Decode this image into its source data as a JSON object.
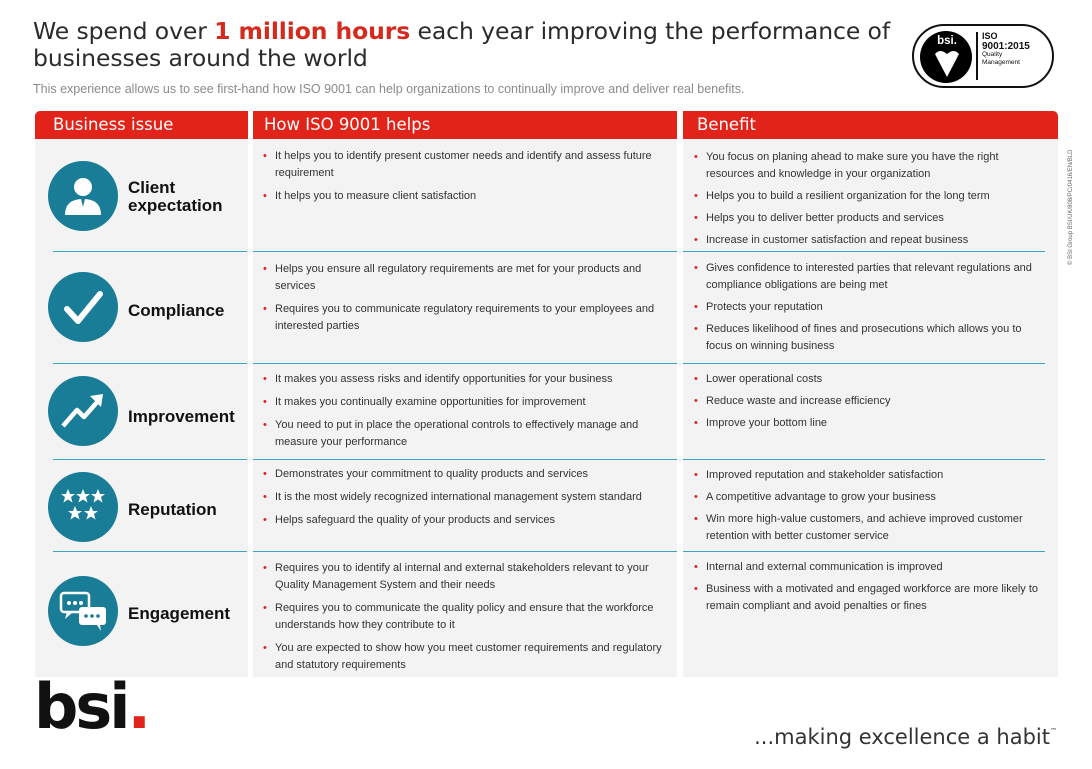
{
  "header": {
    "headline_pre": "We spend over ",
    "headline_highlight": "1 million hours",
    "headline_post": " each year improving the performance of businesses around the world",
    "subline": "This experience allows us to see first-hand how ISO 9001 can help organizations to continually improve and deliver real benefits."
  },
  "badge": {
    "brand": "bsi.",
    "iso": "ISO",
    "standard": "9001:2015",
    "line1": "Quality",
    "line2": "Management"
  },
  "columns": [
    "Business issue",
    "How  ISO 9001 helps",
    "Benefit"
  ],
  "rows": [
    {
      "issue": "Client expectation",
      "icon": "person-icon",
      "helps": [
        "It helps you to identify present customer needs and identify and assess future requirement",
        "It helps you to measure client satisfaction"
      ],
      "benefits": [
        "You focus on planing ahead to make sure you have the right resources and knowledge in your organization",
        "Helps you to build a resilient organization for the long term",
        "Helps you to deliver better products and services",
        "Increase in customer satisfaction and repeat business"
      ]
    },
    {
      "issue": "Compliance",
      "icon": "checkmark-icon",
      "helps": [
        "Helps you ensure all regulatory requirements are met for your products and services",
        "Requires you to communicate regulatory requirements to your employees and interested parties"
      ],
      "benefits": [
        "Gives confidence to interested parties that relevant regulations and compliance obligations are being met",
        "Protects your reputation",
        "Reduces likelihood of fines and prosecutions which allows you to focus on winning business"
      ]
    },
    {
      "issue": "Improvement",
      "icon": "trend-arrow-icon",
      "helps": [
        "It makes you assess risks and identify opportunities for your business",
        "It makes you continually examine opportunities for improvement",
        "You need to put in place the operational controls to effectively manage and measure your performance"
      ],
      "benefits": [
        "Lower operational costs",
        "Reduce waste and increase efficiency",
        "Improve your bottom line"
      ]
    },
    {
      "issue": "Reputation",
      "icon": "stars-icon",
      "helps": [
        "Demonstrates your  commitment to quality products and services",
        "It is the most widely recognized international management system standard",
        "Helps safeguard the quality of your products and services"
      ],
      "benefits": [
        "Improved reputation and stakeholder satisfaction",
        "A competitive advantage to grow your business",
        "Win more high-value customers, and achieve improved customer retention with better customer service"
      ]
    },
    {
      "issue": "Engagement",
      "icon": "speech-bubbles-icon",
      "helps": [
        "Requires you to identify al internal and external stakeholders relevant to your Quality Management System  and their needs",
        "Requires you to communicate the quality policy and ensure that the workforce understands how they contribute to it",
        "You are expected to show how you meet customer requirements and regulatory and statutory requirements"
      ],
      "benefits": [
        "Internal and external communication is improved",
        "Business with a motivated and engaged workforce are more likely to remain compliant and avoid penalties or fines"
      ]
    }
  ],
  "side_text": "© BSI Group    BSI/UK/808/PC/0416/EN/BLD",
  "footer": {
    "logo_text": "bsi",
    "logo_dot": ".",
    "tagline": "...making excellence a habit",
    "tm": "™"
  },
  "colors": {
    "accent_red": "#e2231a",
    "teal": "#1a7d97",
    "divider_blue": "#3aa6c4"
  }
}
